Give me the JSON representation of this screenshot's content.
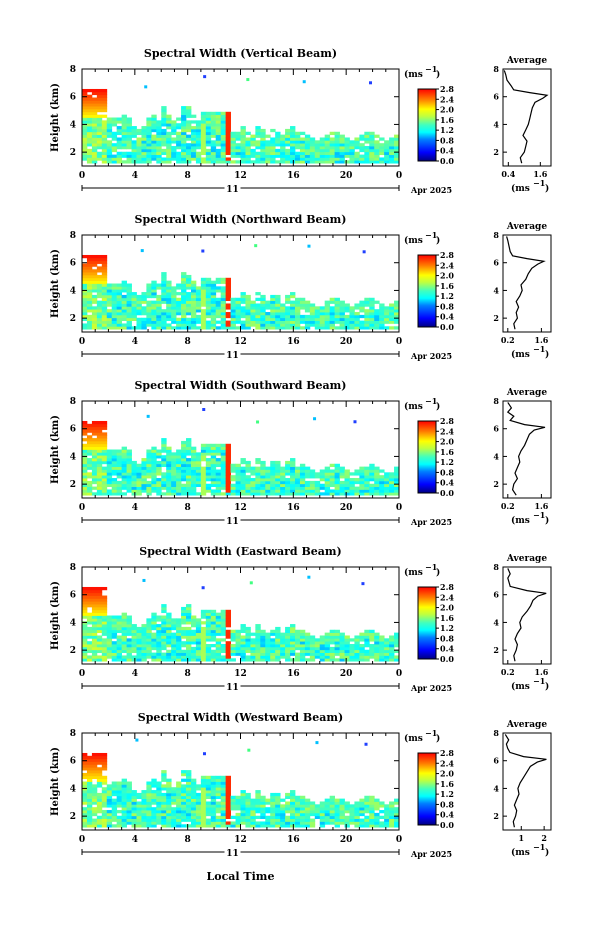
{
  "panels": [
    {
      "title": "Spectral Width (Vertical Beam)",
      "avg_title": "Average",
      "avg_xticks": [
        "0.4",
        "1.6"
      ],
      "avg_xrange": [
        0.2,
        2.0
      ],
      "avg_profile": [
        [
          0.9,
          1.2
        ],
        [
          0.85,
          1.6
        ],
        [
          1.0,
          2.0
        ],
        [
          1.05,
          2.4
        ],
        [
          1.1,
          2.8
        ],
        [
          0.95,
          3.2
        ],
        [
          1.05,
          3.6
        ],
        [
          1.15,
          4.0
        ],
        [
          1.2,
          4.4
        ],
        [
          1.25,
          4.8
        ],
        [
          1.3,
          5.2
        ],
        [
          1.4,
          5.6
        ],
        [
          1.7,
          5.9
        ],
        [
          1.85,
          6.1
        ],
        [
          1.2,
          6.3
        ],
        [
          0.6,
          6.5
        ],
        [
          0.5,
          6.8
        ],
        [
          0.35,
          7.2
        ],
        [
          0.3,
          7.6
        ],
        [
          0.25,
          7.9
        ]
      ]
    },
    {
      "title": "Spectral Width (Northward Beam)",
      "avg_title": "Average",
      "avg_xticks": [
        "0.2",
        "1.6"
      ],
      "avg_xrange": [
        0.0,
        2.0
      ],
      "avg_profile": [
        [
          0.5,
          1.2
        ],
        [
          0.45,
          1.6
        ],
        [
          0.6,
          2.0
        ],
        [
          0.55,
          2.4
        ],
        [
          0.65,
          2.8
        ],
        [
          0.55,
          3.2
        ],
        [
          0.7,
          3.6
        ],
        [
          0.8,
          4.0
        ],
        [
          0.75,
          4.4
        ],
        [
          0.95,
          4.8
        ],
        [
          1.05,
          5.2
        ],
        [
          1.2,
          5.6
        ],
        [
          1.45,
          5.9
        ],
        [
          1.7,
          6.1
        ],
        [
          1.0,
          6.3
        ],
        [
          0.4,
          6.5
        ],
        [
          0.3,
          6.8
        ],
        [
          0.25,
          7.2
        ],
        [
          0.2,
          7.6
        ],
        [
          0.15,
          7.9
        ]
      ]
    },
    {
      "title": "Spectral Width (Southward Beam)",
      "avg_title": "Average",
      "avg_xticks": [
        "0.2",
        "1.6"
      ],
      "avg_xrange": [
        0.0,
        2.0
      ],
      "avg_profile": [
        [
          0.55,
          1.2
        ],
        [
          0.4,
          1.6
        ],
        [
          0.45,
          2.0
        ],
        [
          0.6,
          2.4
        ],
        [
          0.5,
          2.8
        ],
        [
          0.6,
          3.2
        ],
        [
          0.7,
          3.6
        ],
        [
          0.65,
          4.0
        ],
        [
          0.75,
          4.4
        ],
        [
          0.9,
          4.8
        ],
        [
          1.0,
          5.2
        ],
        [
          1.1,
          5.6
        ],
        [
          1.3,
          5.9
        ],
        [
          1.75,
          6.1
        ],
        [
          0.9,
          6.3
        ],
        [
          0.3,
          6.6
        ],
        [
          0.45,
          6.9
        ],
        [
          0.2,
          7.2
        ],
        [
          0.35,
          7.5
        ],
        [
          0.2,
          7.9
        ]
      ]
    },
    {
      "title": "Spectral Width (Eastward Beam)",
      "avg_title": "Average",
      "avg_xticks": [
        "0.2",
        "1.6"
      ],
      "avg_xrange": [
        0.0,
        2.0
      ],
      "avg_profile": [
        [
          0.5,
          1.2
        ],
        [
          0.45,
          1.6
        ],
        [
          0.55,
          2.0
        ],
        [
          0.6,
          2.4
        ],
        [
          0.5,
          2.8
        ],
        [
          0.6,
          3.2
        ],
        [
          0.75,
          3.6
        ],
        [
          0.7,
          4.0
        ],
        [
          0.8,
          4.4
        ],
        [
          1.0,
          4.8
        ],
        [
          1.15,
          5.2
        ],
        [
          1.25,
          5.6
        ],
        [
          1.45,
          5.9
        ],
        [
          1.8,
          6.1
        ],
        [
          1.0,
          6.3
        ],
        [
          0.3,
          6.6
        ],
        [
          0.25,
          6.9
        ],
        [
          0.2,
          7.2
        ],
        [
          0.3,
          7.5
        ],
        [
          0.2,
          7.9
        ]
      ]
    },
    {
      "title": "Spectral Width (Westward Beam)",
      "avg_title": "Average",
      "avg_xticks": [
        "1",
        "2"
      ],
      "avg_xrange": [
        0.2,
        2.3
      ],
      "avg_profile": [
        [
          0.7,
          1.2
        ],
        [
          0.65,
          1.6
        ],
        [
          0.75,
          2.0
        ],
        [
          0.8,
          2.4
        ],
        [
          0.7,
          2.8
        ],
        [
          0.8,
          3.2
        ],
        [
          0.9,
          3.6
        ],
        [
          0.85,
          4.0
        ],
        [
          0.95,
          4.4
        ],
        [
          1.1,
          4.8
        ],
        [
          1.25,
          5.2
        ],
        [
          1.4,
          5.6
        ],
        [
          1.7,
          5.9
        ],
        [
          2.1,
          6.1
        ],
        [
          1.1,
          6.3
        ],
        [
          0.5,
          6.6
        ],
        [
          0.4,
          6.9
        ],
        [
          0.35,
          7.2
        ],
        [
          0.45,
          7.5
        ],
        [
          0.3,
          7.9
        ]
      ]
    }
  ],
  "y_ticks": [
    "2",
    "4",
    "6",
    "8"
  ],
  "y_label": "Height (km)",
  "x_ticks": [
    "0",
    "4",
    "8",
    "12",
    "16",
    "20",
    "0"
  ],
  "date_day": "11",
  "date_month": "Apr 2025",
  "cbar_unit": "(ms",
  "cbar_unit_exp": "−1",
  "cbar_ticks": [
    "2.8",
    "2.4",
    "2.0",
    "1.6",
    "1.2",
    "0.8",
    "0.4",
    "0.0"
  ],
  "avg_xlabel": "(ms",
  "avg_xlabel_exp": "−1",
  "bottom_xlabel": "Local Time",
  "chart_data": {
    "type": "heatmap",
    "x_range_hours": [
      0,
      24
    ],
    "y_range_km": [
      1,
      8
    ],
    "value_range_ms": [
      0.0,
      2.8
    ],
    "series": [
      {
        "name": "Spectral Width (Vertical Beam)",
        "values": "time-height field; high values 2.0-2.8 at 0-2 h near 5-7 km and 10.5-11 h at 1.5-5 km, typical 0.4-1.0 elsewhere"
      },
      {
        "name": "Spectral Width (Northward Beam)",
        "values": "time-height field similar to vertical beam"
      },
      {
        "name": "Spectral Width (Southward Beam)",
        "values": "time-height field similar to vertical beam"
      },
      {
        "name": "Spectral Width (Eastward Beam)",
        "values": "time-height field similar to vertical beam"
      },
      {
        "name": "Spectral Width (Westward Beam)",
        "values": "time-height field similar to vertical beam"
      }
    ]
  }
}
